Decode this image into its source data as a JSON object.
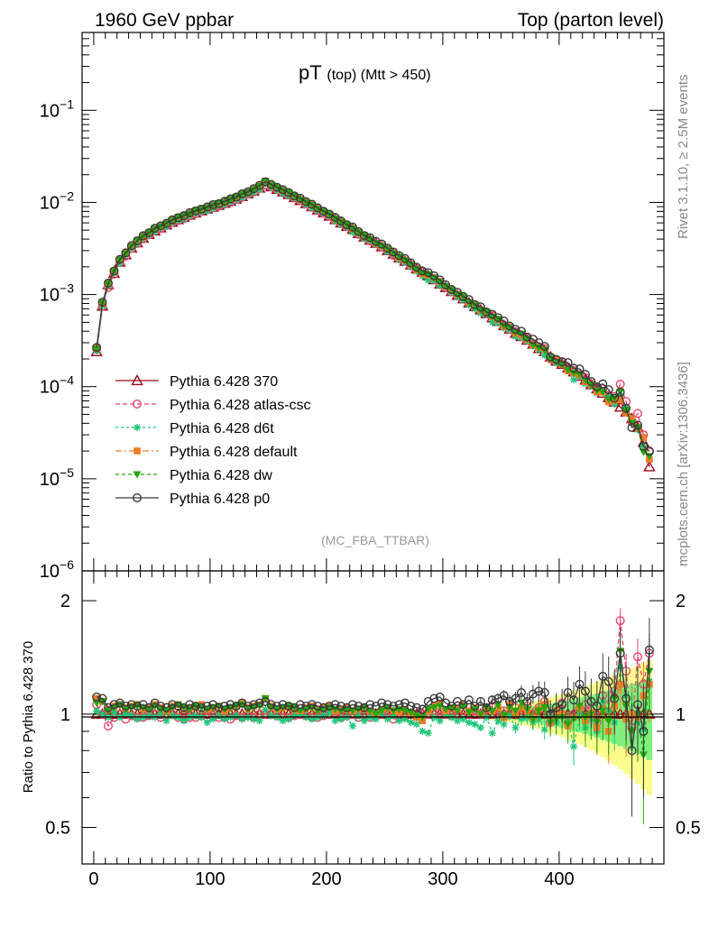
{
  "header": {
    "left": "1960 GeV ppbar",
    "right": "Top (parton level)"
  },
  "side_labels": {
    "rivet": "Rivet 3.1.10, ≥ 2.5M events",
    "mcplots": "mcplots.cern.ch [arXiv:1306.3436]"
  },
  "chart_data": {
    "type": "line",
    "title_main": "pT",
    "title_sub": "(top) (Mtt > 450)",
    "watermark": "(MC_FBA_TTBAR)",
    "xlim": [
      -10,
      490
    ],
    "ylim": [
      1e-06,
      0.7
    ],
    "yscale": "log",
    "x_ticks": [
      "0",
      "100",
      "200",
      "300",
      "400"
    ],
    "y_ticks": [
      {
        "base": "10",
        "exp": "−1"
      },
      {
        "base": "10",
        "exp": "−2"
      },
      {
        "base": "10",
        "exp": "−3"
      },
      {
        "base": "10",
        "exp": "−4"
      },
      {
        "base": "10",
        "exp": "−5"
      },
      {
        "base": "10",
        "exp": "−6"
      }
    ],
    "x": [
      2.5,
      7.5,
      12.5,
      17.5,
      22.5,
      27.5,
      32.5,
      37.5,
      42.5,
      47.5,
      52.5,
      57.5,
      62.5,
      67.5,
      72.5,
      77.5,
      82.5,
      87.5,
      92.5,
      97.5,
      102.5,
      107.5,
      112.5,
      117.5,
      122.5,
      127.5,
      132.5,
      137.5,
      142.5,
      147.5,
      152.5,
      157.5,
      162.5,
      167.5,
      172.5,
      177.5,
      182.5,
      187.5,
      192.5,
      197.5,
      202.5,
      207.5,
      212.5,
      217.5,
      222.5,
      227.5,
      232.5,
      237.5,
      242.5,
      247.5,
      252.5,
      257.5,
      262.5,
      267.5,
      272.5,
      277.5,
      282.5,
      287.5,
      292.5,
      297.5,
      302.5,
      307.5,
      312.5,
      317.5,
      322.5,
      327.5,
      332.5,
      337.5,
      342.5,
      347.5,
      352.5,
      357.5,
      362.5,
      367.5,
      372.5,
      377.5,
      382.5,
      387.5,
      392.5,
      397.5,
      402.5,
      407.5,
      412.5,
      417.5,
      422.5,
      427.5,
      432.5,
      437.5,
      442.5,
      447.5,
      452.5,
      457.5,
      462.5,
      467.5,
      472.5,
      477.5
    ],
    "reference": [
      0.00024,
      0.00075,
      0.00128,
      0.0017,
      0.00225,
      0.0027,
      0.0032,
      0.00365,
      0.0041,
      0.0045,
      0.0049,
      0.0053,
      0.0057,
      0.0061,
      0.0065,
      0.0069,
      0.0073,
      0.0077,
      0.0081,
      0.0085,
      0.0089,
      0.0093,
      0.0098,
      0.0103,
      0.0109,
      0.0116,
      0.0124,
      0.0133,
      0.0143,
      0.0155,
      0.0148,
      0.0139,
      0.013,
      0.0122,
      0.0113,
      0.0105,
      0.0097,
      0.009,
      0.0083,
      0.0077,
      0.0071,
      0.0065,
      0.006,
      0.0055,
      0.0051,
      0.0046,
      0.0042,
      0.0039,
      0.0036,
      0.0033,
      0.003,
      0.00275,
      0.0025,
      0.0023,
      0.0021,
      0.0019,
      0.00175,
      0.0016,
      0.00145,
      0.0013,
      0.00119,
      0.00108,
      0.00098,
      0.0009,
      0.00081,
      0.00074,
      0.00068,
      0.00062,
      0.00056,
      0.00051,
      0.00046,
      0.00042,
      0.00038,
      0.00035,
      0.00032,
      0.00029,
      0.00026,
      0.00024,
      0.00021,
      0.00019,
      0.000175,
      0.00016,
      0.000145,
      0.00013,
      0.000118,
      0.000105,
      9.5e-05,
      8.5e-05,
      7.6e-05,
      6.8e-05,
      6e-05,
      5.3e-05,
      4.5e-05,
      3.6e-05,
      2.5e-05,
      1.35e-05
    ],
    "ratio_ylim": [
      0.4,
      2.4
    ],
    "ratio_ylabel": "Ratio to Pythia 6.428 370",
    "ratio_ticks": [
      "0.5",
      "1",
      "2"
    ],
    "series": [
      {
        "name": "Pythia 6.428 370",
        "color": "#9b0a1c",
        "dash": "",
        "marker": "triangle-open",
        "ratio": [
          1.0,
          1.0,
          1.0,
          1.0,
          1.0,
          1.0,
          1.0,
          1.0,
          1.0,
          1.0,
          1.0,
          1.0,
          1.0,
          1.0,
          1.0,
          1.0,
          1.0,
          1.0,
          1.0,
          1.0,
          1.0,
          1.0,
          1.0,
          1.0,
          1.0,
          1.0,
          1.0,
          1.0,
          1.0,
          1.0,
          1.0,
          1.0,
          1.0,
          1.0,
          1.0,
          1.0,
          1.0,
          1.0,
          1.0,
          1.0,
          1.0,
          1.0,
          1.0,
          1.0,
          1.0,
          1.0,
          1.0,
          1.0,
          1.0,
          1.0,
          1.0,
          1.0,
          1.0,
          1.0,
          1.0,
          1.0,
          1.0,
          1.0,
          1.0,
          1.0,
          1.0,
          1.0,
          1.0,
          1.0,
          1.0,
          1.0,
          1.0,
          1.0,
          1.0,
          1.0,
          1.0,
          1.0,
          1.0,
          1.0,
          1.0,
          1.0,
          1.0,
          1.0,
          1.0,
          1.0,
          1.0,
          1.0,
          1.0,
          1.0,
          1.0,
          1.0,
          1.0,
          1.0,
          1.0,
          1.0,
          1.0,
          1.0,
          1.0,
          1.0,
          1.0,
          1.0
        ]
      },
      {
        "name": "Pythia 6.428 atlas-csc",
        "color": "#e8456c",
        "dash": "5,3",
        "marker": "circle-open",
        "ratio": [
          1.06,
          1.0,
          0.93,
          0.98,
          1.0,
          0.97,
          0.99,
          0.98,
          0.98,
          0.99,
          1.0,
          0.98,
          0.99,
          1.0,
          0.98,
          0.97,
          0.98,
          0.98,
          0.99,
          0.98,
          0.99,
          0.98,
          0.98,
          0.97,
          0.99,
          0.98,
          0.99,
          0.98,
          1.0,
          1.0,
          1.0,
          0.99,
          0.98,
          0.98,
          0.99,
          1.0,
          0.99,
          0.98,
          0.98,
          0.99,
          1.0,
          1.01,
          0.98,
          0.99,
          1.0,
          0.98,
          0.99,
          0.98,
          0.99,
          1.0,
          1.01,
          0.97,
          0.98,
          1.0,
          0.98,
          0.99,
          1.0,
          1.0,
          1.0,
          1.01,
          1.0,
          0.99,
          1.0,
          1.03,
          1.0,
          1.02,
          1.0,
          1.03,
          1.05,
          0.99,
          1.02,
          1.0,
          1.04,
          1.0,
          1.05,
          1.0,
          1.04,
          1.08,
          0.95,
          1.01,
          1.07,
          0.95,
          1.0,
          1.04,
          1.06,
          1.02,
          0.95,
          1.12,
          1.06,
          1.15,
          1.77,
          1.3,
          0.92,
          1.42,
          1.2,
          1.45
        ]
      },
      {
        "name": "Pythia 6.428 d6t",
        "color": "#1fc77a",
        "dash": "3,3",
        "marker": "star",
        "ratio": [
          1.02,
          1.0,
          0.98,
          1.01,
          0.98,
          1.0,
          0.99,
          0.97,
          0.98,
          0.99,
          0.98,
          1.0,
          0.96,
          0.99,
          0.98,
          0.96,
          0.98,
          0.99,
          0.98,
          0.95,
          0.97,
          0.99,
          0.97,
          0.98,
          0.99,
          0.97,
          0.98,
          0.97,
          0.96,
          1.03,
          0.99,
          0.98,
          0.96,
          0.97,
          0.99,
          1.0,
          0.98,
          0.97,
          0.98,
          0.99,
          1.01,
          0.96,
          0.97,
          0.98,
          0.93,
          0.99,
          0.96,
          0.98,
          0.97,
          1.0,
          0.97,
          0.99,
          0.96,
          0.97,
          0.95,
          0.94,
          0.9,
          0.89,
          0.98,
          0.96,
          1.0,
          0.98,
          0.96,
          0.97,
          0.95,
          0.94,
          0.92,
          0.98,
          0.89,
          0.96,
          0.94,
          0.99,
          0.92,
          0.97,
          0.98,
          0.95,
          0.97,
          0.91,
          0.99,
          0.95,
          1.0,
          0.96,
          0.82,
          1.0,
          0.92,
          0.97,
          0.9,
          1.08,
          1.02,
          0.95,
          1.33,
          1.12,
          1.0,
          0.95,
          0.91,
          1.22
        ]
      },
      {
        "name": "Pythia 6.428 default",
        "color": "#f07c27",
        "dash": "7,3,2,3",
        "marker": "square",
        "ratio": [
          1.1,
          1.08,
          1.03,
          1.05,
          1.06,
          1.04,
          1.05,
          1.06,
          1.03,
          1.04,
          1.06,
          1.04,
          1.02,
          1.05,
          1.06,
          1.03,
          1.04,
          1.05,
          1.06,
          1.03,
          1.04,
          1.05,
          1.02,
          1.04,
          1.05,
          1.07,
          1.04,
          1.05,
          1.06,
          1.1,
          1.05,
          1.03,
          1.04,
          1.05,
          1.03,
          1.02,
          1.04,
          1.05,
          1.03,
          1.04,
          1.05,
          1.02,
          1.03,
          1.04,
          1.02,
          1.03,
          1.04,
          1.02,
          1.0,
          1.03,
          1.04,
          1.02,
          1.01,
          1.03,
          1.0,
          0.98,
          0.96,
          1.02,
          1.05,
          1.07,
          1.02,
          1.04,
          1.03,
          1.06,
          1.02,
          1.04,
          1.0,
          1.03,
          1.02,
          1.04,
          0.98,
          1.06,
          1.0,
          1.04,
          1.02,
          0.98,
          1.03,
          1.06,
          0.95,
          1.02,
          1.0,
          0.93,
          0.98,
          1.04,
          0.96,
          1.01,
          0.92,
          1.03,
          0.9,
          1.05,
          1.2,
          0.97,
          1.0,
          0.98,
          1.12,
          1.2
        ]
      },
      {
        "name": "Pythia 6.428 dw",
        "color": "#23a80c",
        "dash": "4,3",
        "marker": "triangle-down",
        "ratio": [
          1.07,
          1.08,
          1.02,
          1.04,
          1.06,
          1.03,
          1.04,
          1.05,
          1.04,
          1.03,
          1.05,
          1.03,
          1.02,
          1.04,
          1.06,
          1.04,
          1.03,
          1.05,
          1.04,
          1.03,
          1.04,
          1.05,
          1.03,
          1.04,
          1.05,
          1.06,
          1.03,
          1.04,
          1.05,
          1.1,
          1.04,
          1.03,
          1.04,
          1.05,
          1.04,
          1.02,
          1.03,
          1.04,
          1.02,
          1.03,
          1.04,
          1.03,
          1.02,
          1.03,
          1.02,
          1.03,
          1.04,
          1.02,
          1.0,
          1.02,
          1.04,
          1.02,
          1.03,
          1.02,
          1.01,
          0.99,
          0.98,
          1.03,
          1.04,
          1.05,
          1.03,
          1.04,
          1.02,
          1.05,
          1.01,
          1.03,
          1.0,
          1.04,
          1.02,
          1.06,
          0.99,
          1.04,
          1.02,
          1.07,
          1.03,
          0.97,
          1.02,
          1.04,
          0.95,
          0.97,
          0.98,
          0.94,
          0.97,
          1.05,
          0.98,
          1.0,
          0.95,
          1.02,
          0.96,
          1.1,
          1.47,
          1.05,
          0.9,
          1.0,
          0.78,
          1.3
        ]
      },
      {
        "name": "Pythia 6.428 p0",
        "color": "#3a3a3a",
        "dash": "",
        "marker": "circle-open",
        "ratio": [
          1.11,
          1.1,
          1.04,
          1.06,
          1.07,
          1.05,
          1.06,
          1.05,
          1.06,
          1.04,
          1.07,
          1.05,
          1.04,
          1.06,
          1.05,
          1.04,
          1.06,
          1.05,
          1.04,
          1.05,
          1.06,
          1.04,
          1.05,
          1.06,
          1.05,
          1.07,
          1.05,
          1.06,
          1.07,
          1.08,
          1.06,
          1.05,
          1.06,
          1.05,
          1.04,
          1.06,
          1.05,
          1.06,
          1.05,
          1.04,
          1.05,
          1.06,
          1.05,
          1.04,
          1.06,
          1.05,
          1.04,
          1.06,
          1.05,
          1.07,
          1.06,
          1.05,
          1.06,
          1.07,
          1.05,
          1.04,
          1.03,
          1.08,
          1.1,
          1.11,
          1.07,
          1.05,
          1.08,
          1.06,
          1.09,
          1.05,
          1.08,
          1.04,
          1.09,
          1.1,
          1.12,
          1.08,
          1.1,
          1.14,
          1.08,
          1.13,
          1.15,
          1.14,
          1.0,
          1.04,
          1.06,
          1.14,
          1.09,
          1.2,
          1.15,
          1.08,
          1.05,
          1.26,
          1.22,
          1.1,
          1.45,
          1.1,
          0.8,
          1.06,
          0.9,
          1.48
        ]
      }
    ]
  }
}
